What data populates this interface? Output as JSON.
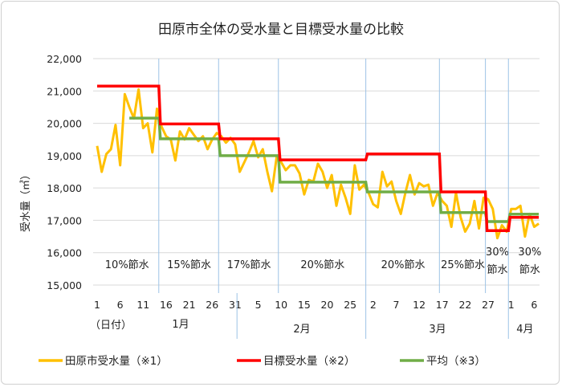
{
  "chart_data": {
    "type": "line",
    "title": "田原市全体の受水量と目標受水量の比較",
    "ylabel": "受水量（㎥）",
    "xlabel": "（日付）",
    "ylim": [
      15000,
      22000
    ],
    "yticks": [
      15000,
      16000,
      17000,
      18000,
      19000,
      20000,
      21000,
      22000
    ],
    "ytick_labels": [
      "15,000",
      "16,000",
      "17,000",
      "18,000",
      "19,000",
      "20,000",
      "21,000",
      "22,000"
    ],
    "grid": true,
    "legend_position": "bottom",
    "x_tick_labels": [
      "1",
      "6",
      "11",
      "16",
      "21",
      "26",
      "31",
      "5",
      "10",
      "15",
      "20",
      "25",
      "2",
      "7",
      "12",
      "17",
      "22",
      "27",
      "1",
      "6"
    ],
    "x_tick_days": [
      1,
      6,
      11,
      16,
      21,
      26,
      31,
      36,
      41,
      46,
      51,
      56,
      61,
      66,
      71,
      76,
      81,
      86,
      91,
      96
    ],
    "months": [
      {
        "label": "1月",
        "first_day": 1,
        "last_day": 31
      },
      {
        "label": "2月",
        "first_day": 32,
        "last_day": 59
      },
      {
        "label": "3月",
        "first_day": 60,
        "last_day": 90
      },
      {
        "label": "4月",
        "first_day": 91,
        "last_day": 97
      }
    ],
    "periods": [
      {
        "label": "10%節水",
        "first_day": 1,
        "last_day": 14
      },
      {
        "label": "15%節水",
        "first_day": 15,
        "last_day": 27
      },
      {
        "label": "17%節水",
        "first_day": 28,
        "last_day": 40
      },
      {
        "label": "20%節水",
        "first_day": 41,
        "last_day": 59
      },
      {
        "label": "20%節水",
        "first_day": 60,
        "last_day": 75
      },
      {
        "label": "25%節水",
        "first_day": 76,
        "last_day": 85
      },
      {
        "label": "30%節水",
        "first_day": 86,
        "last_day": 90,
        "lines": [
          "30%",
          "節水"
        ]
      },
      {
        "label": "30%節水",
        "first_day": 91,
        "last_day": 97,
        "lines": [
          "30%",
          "節水"
        ]
      }
    ],
    "series": [
      {
        "name": "田原市受水量（※1）",
        "color": "#FFC000",
        "values": [
          19300,
          18500,
          19050,
          19200,
          19950,
          18700,
          20900,
          20500,
          20150,
          21050,
          19850,
          20000,
          19100,
          20450,
          19900,
          19600,
          19500,
          18850,
          19750,
          19500,
          19850,
          19650,
          19450,
          19600,
          19200,
          19500,
          19700,
          19600,
          19400,
          19550,
          19350,
          18500,
          18800,
          19100,
          19450,
          18950,
          19200,
          18500,
          17900,
          18950,
          18800,
          18550,
          18700,
          18700,
          18450,
          17800,
          18250,
          18200,
          18750,
          18500,
          18000,
          18400,
          17450,
          18100,
          17700,
          17200,
          18700,
          17950,
          18100,
          17850,
          17500,
          17400,
          18500,
          18050,
          18200,
          17600,
          17200,
          17850,
          18400,
          17800,
          18150,
          18050,
          18100,
          17450,
          17850,
          17600,
          17450,
          16800,
          17850,
          17100,
          16650,
          16900,
          17600,
          16750,
          17700,
          17650,
          17350,
          16450,
          16850,
          16650,
          17350,
          17350,
          17450,
          16500,
          17200,
          16800,
          16900
        ]
      },
      {
        "name": "目標受水量（※2）",
        "color": "#FF0000",
        "steps": [
          {
            "first_day": 1,
            "last_day": 14,
            "value": 21150
          },
          {
            "first_day": 15,
            "last_day": 27,
            "value": 19980
          },
          {
            "first_day": 28,
            "last_day": 40,
            "value": 19520
          },
          {
            "first_day": 41,
            "last_day": 59,
            "value": 18870
          },
          {
            "first_day": 60,
            "last_day": 75,
            "value": 19050
          },
          {
            "first_day": 76,
            "last_day": 85,
            "value": 17880
          },
          {
            "first_day": 86,
            "last_day": 90,
            "value": 16680
          },
          {
            "first_day": 91,
            "last_day": 97,
            "value": 17090
          }
        ]
      },
      {
        "name": "平均（※3）",
        "color": "#70AD47",
        "steps": [
          {
            "first_day": 8,
            "last_day": 14,
            "value": 20160
          },
          {
            "first_day": 15,
            "last_day": 27,
            "value": 19520
          },
          {
            "first_day": 28,
            "last_day": 40,
            "value": 19000
          },
          {
            "first_day": 41,
            "last_day": 59,
            "value": 18180
          },
          {
            "first_day": 60,
            "last_day": 75,
            "value": 17880
          },
          {
            "first_day": 76,
            "last_day": 85,
            "value": 17240
          },
          {
            "first_day": 86,
            "last_day": 90,
            "value": 16960
          },
          {
            "first_day": 91,
            "last_day": 97,
            "value": 17190
          }
        ]
      }
    ]
  }
}
